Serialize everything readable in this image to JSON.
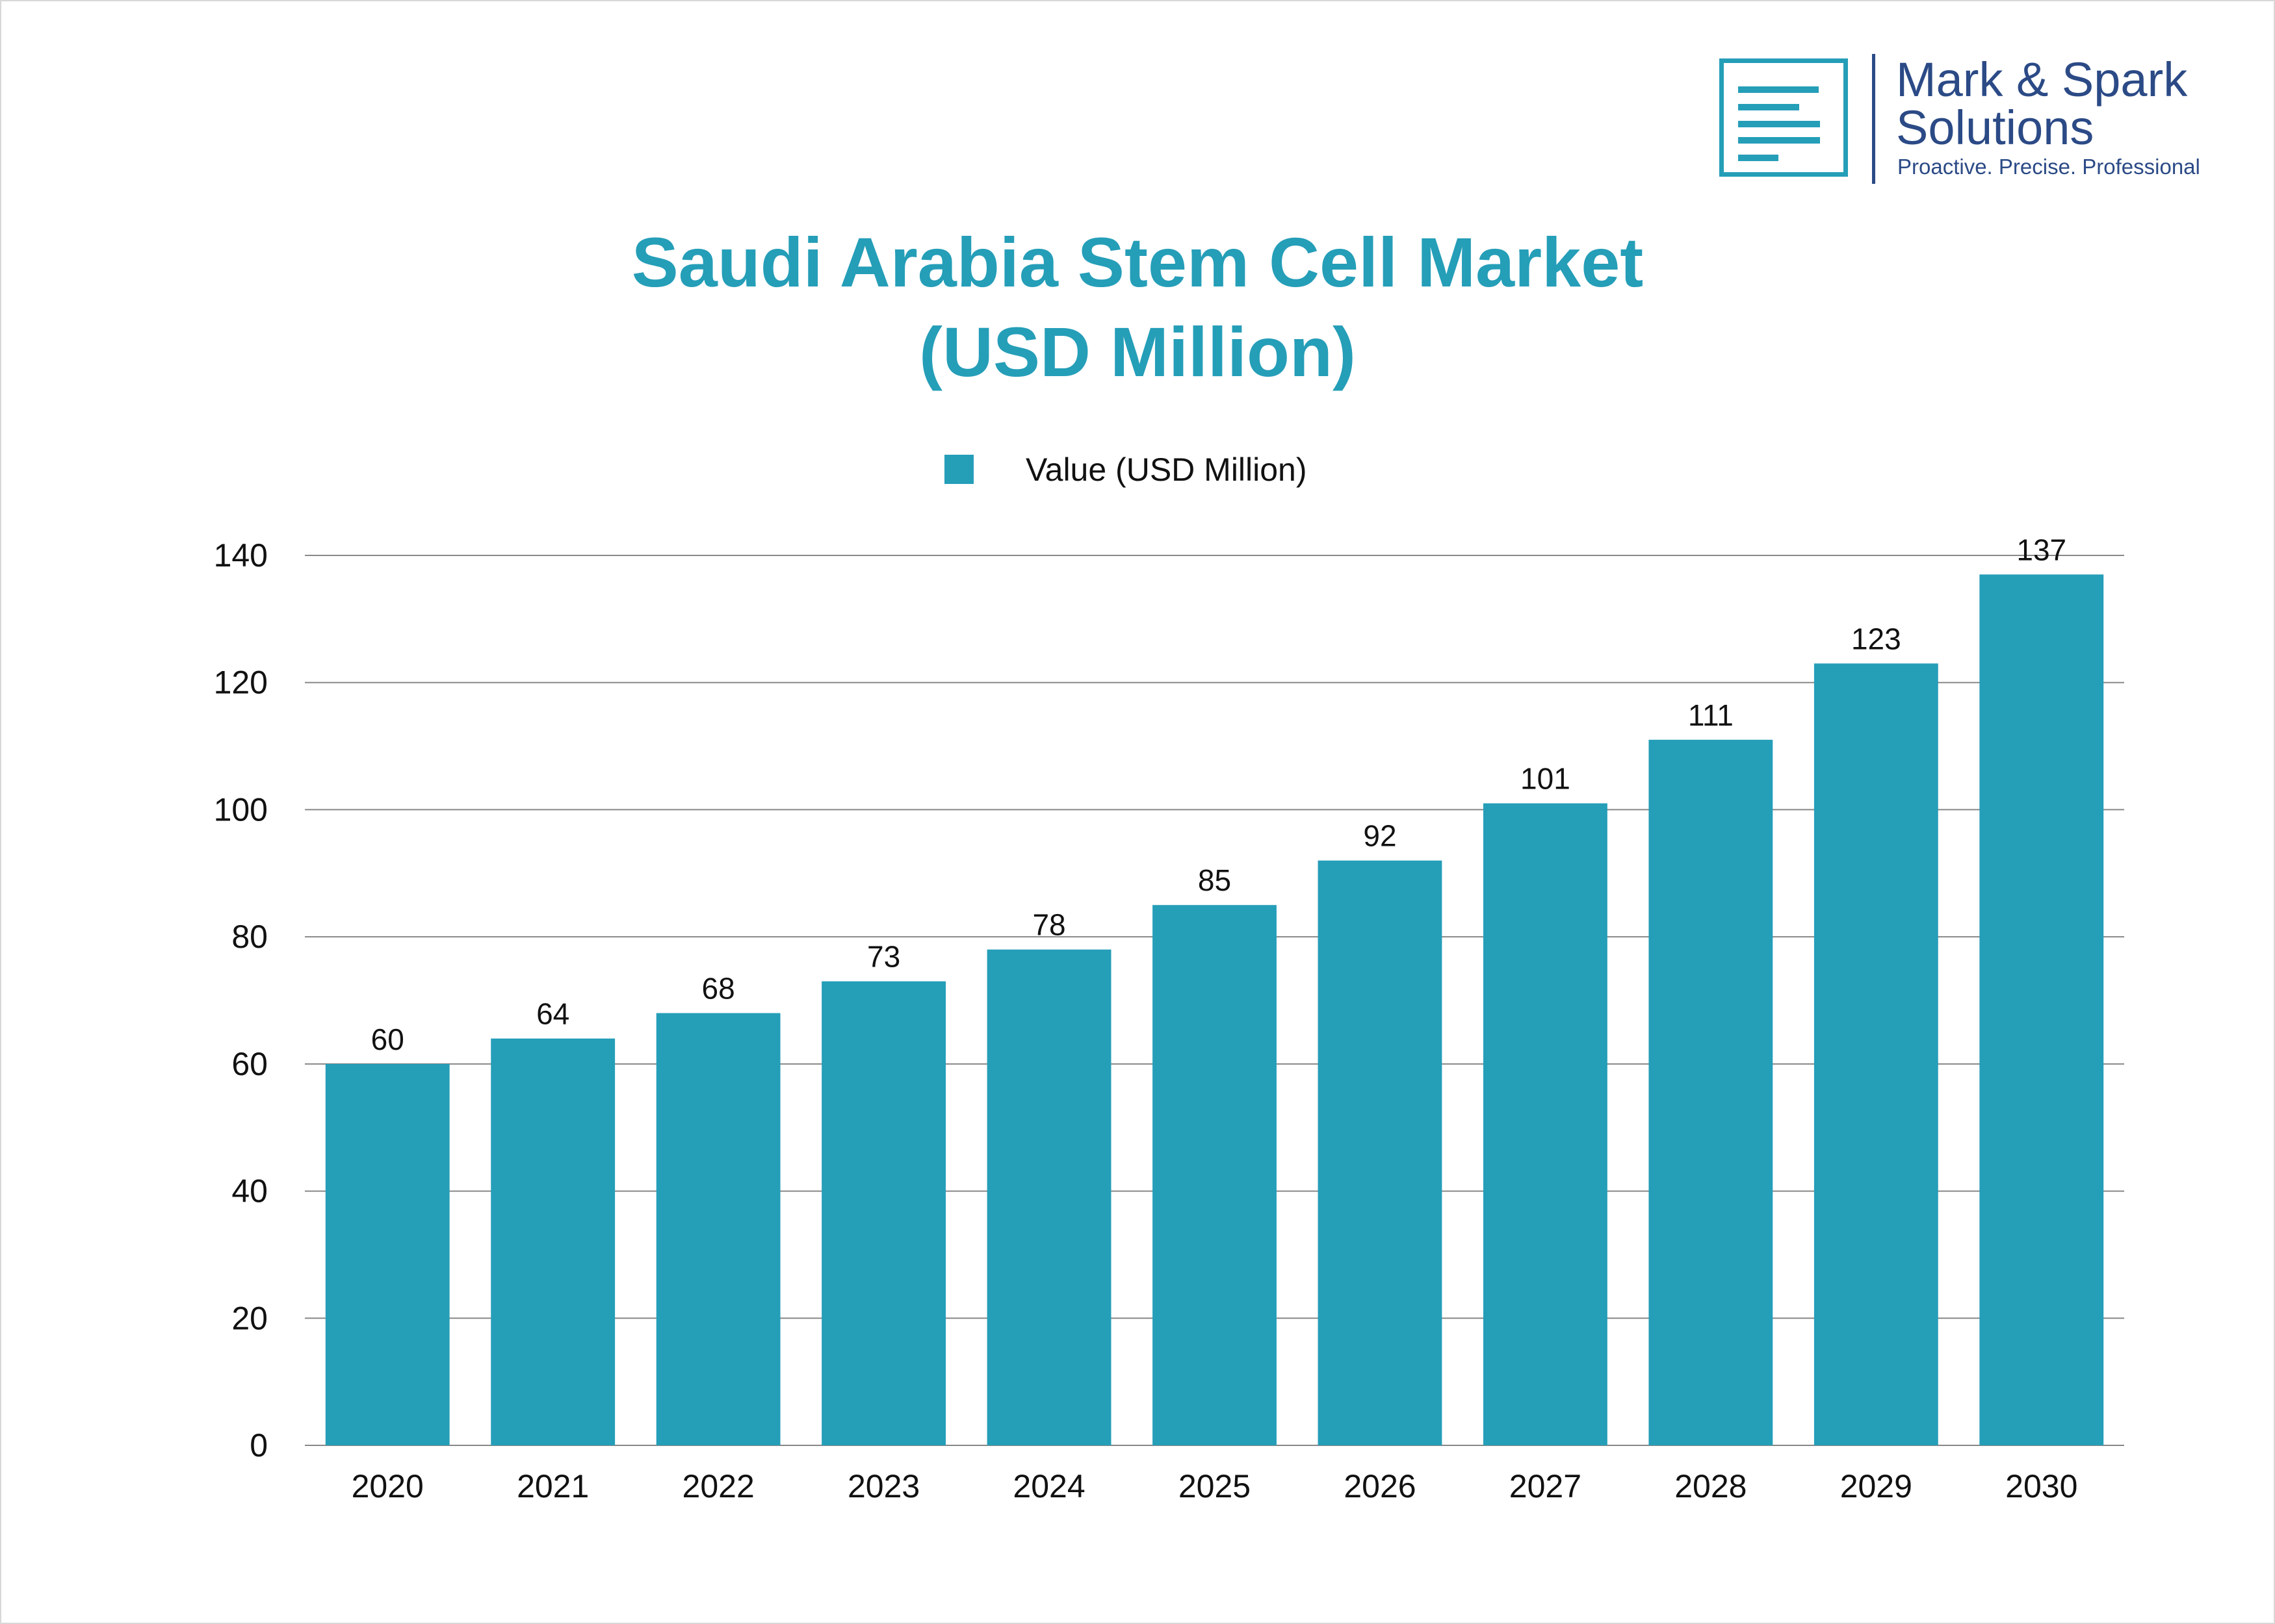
{
  "logo": {
    "name_line1": "Mark & Spark",
    "name_line2": "Solutions",
    "tagline": "Proactive. Precise. Professional",
    "color": "#2b4a86",
    "icon": "document-lines-icon"
  },
  "chart_data": {
    "type": "bar",
    "title_line1": "Saudi Arabia Stem Cell Market",
    "title_line2": "(USD Million)",
    "categories": [
      "2020",
      "2021",
      "2022",
      "2023",
      "2024",
      "2025",
      "2026",
      "2027",
      "2028",
      "2029",
      "2030"
    ],
    "series": [
      {
        "name": "Value (USD Million)",
        "values": [
          60,
          64,
          68,
          73,
          78,
          85,
          92,
          101,
          111,
          123,
          137
        ],
        "color": "#259eb8"
      }
    ],
    "yticks": [
      0,
      20,
      40,
      60,
      80,
      100,
      120,
      140
    ],
    "ylim": [
      0,
      140
    ],
    "grid": true,
    "legend": "top-center",
    "xlabel": "",
    "ylabel": ""
  }
}
